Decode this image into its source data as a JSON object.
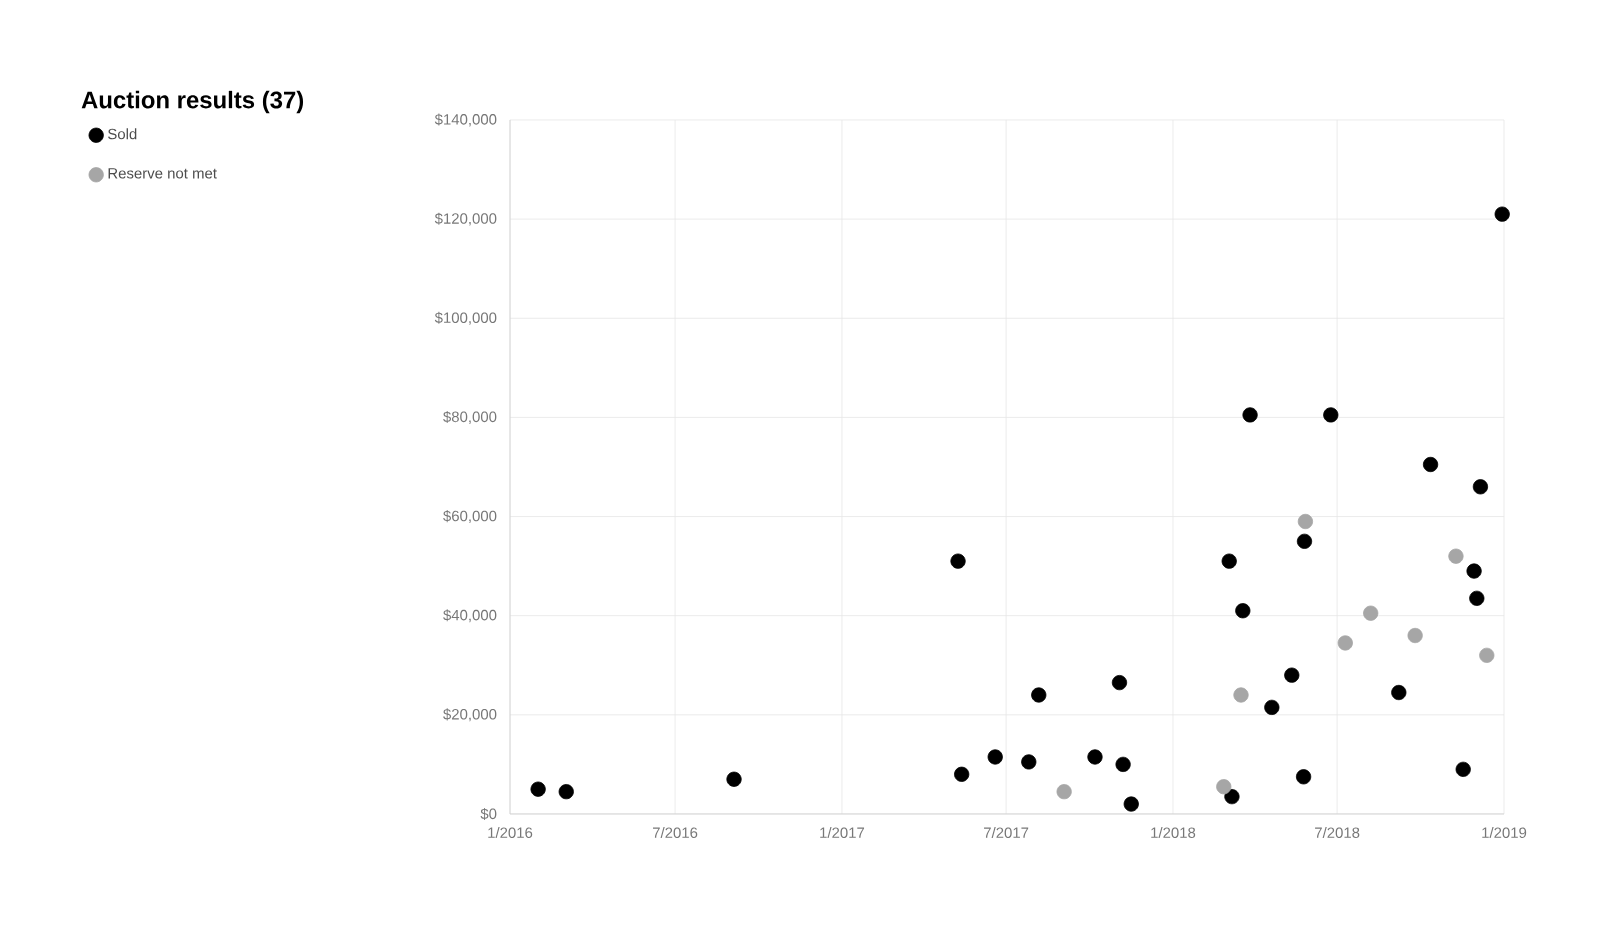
{
  "chart_data": {
    "type": "scatter",
    "title": "Auction results (37)",
    "xlim": [
      "2016-01-01",
      "2019-01-01"
    ],
    "xticks": [
      {
        "value": "2016-01-01",
        "label": "1/2016"
      },
      {
        "value": "2016-07-01",
        "label": "7/2016"
      },
      {
        "value": "2017-01-01",
        "label": "1/2017"
      },
      {
        "value": "2017-07-01",
        "label": "7/2017"
      },
      {
        "value": "2018-01-01",
        "label": "1/2018"
      },
      {
        "value": "2018-07-01",
        "label": "7/2018"
      },
      {
        "value": "2019-01-01",
        "label": "1/2019"
      }
    ],
    "ylim": [
      0,
      140000
    ],
    "yticks": [
      {
        "value": 0,
        "label": "$0"
      },
      {
        "value": 20000,
        "label": "$20,000"
      },
      {
        "value": 40000,
        "label": "$40,000"
      },
      {
        "value": 60000,
        "label": "$60,000"
      },
      {
        "value": 80000,
        "label": "$80,000"
      },
      {
        "value": 100000,
        "label": "$100,000"
      },
      {
        "value": 120000,
        "label": "$120,000"
      },
      {
        "value": 140000,
        "label": "$140,000"
      }
    ],
    "grid": true,
    "legend": "left",
    "marker": "circle",
    "series": [
      {
        "name": "Sold",
        "color": "#000000",
        "x": [
          "2016-02-01",
          "2016-03-03",
          "2016-09-04",
          "2017-05-09",
          "2017-05-13",
          "2017-06-19",
          "2017-07-26",
          "2017-08-06",
          "2017-10-07",
          "2017-11-03",
          "2017-11-07",
          "2017-11-16",
          "2018-03-04",
          "2018-03-07",
          "2018-03-19",
          "2018-03-27",
          "2018-04-20",
          "2018-05-12",
          "2018-05-26",
          "2018-05-25",
          "2018-06-24",
          "2018-09-07",
          "2018-10-12",
          "2018-11-17",
          "2018-11-29",
          "2018-12-02",
          "2018-12-06",
          "2018-12-30"
        ],
        "values": [
          5000,
          4500,
          7000,
          51000,
          8000,
          11500,
          10500,
          24000,
          11500,
          26500,
          10000,
          2000,
          51000,
          3500,
          41000,
          80500,
          21500,
          28000,
          55000,
          7500,
          80500,
          24500,
          70500,
          9000,
          49000,
          43500,
          66000,
          121000
        ]
      },
      {
        "name": "Reserve not met",
        "color": "#a6a6a6",
        "x": [
          "2017-09-03",
          "2018-02-26",
          "2018-03-17",
          "2018-05-27",
          "2018-07-10",
          "2018-08-07",
          "2018-09-25",
          "2018-11-09",
          "2018-12-13"
        ],
        "values": [
          4500,
          5500,
          24000,
          59000,
          34500,
          40500,
          36000,
          52000,
          32000
        ]
      }
    ]
  }
}
